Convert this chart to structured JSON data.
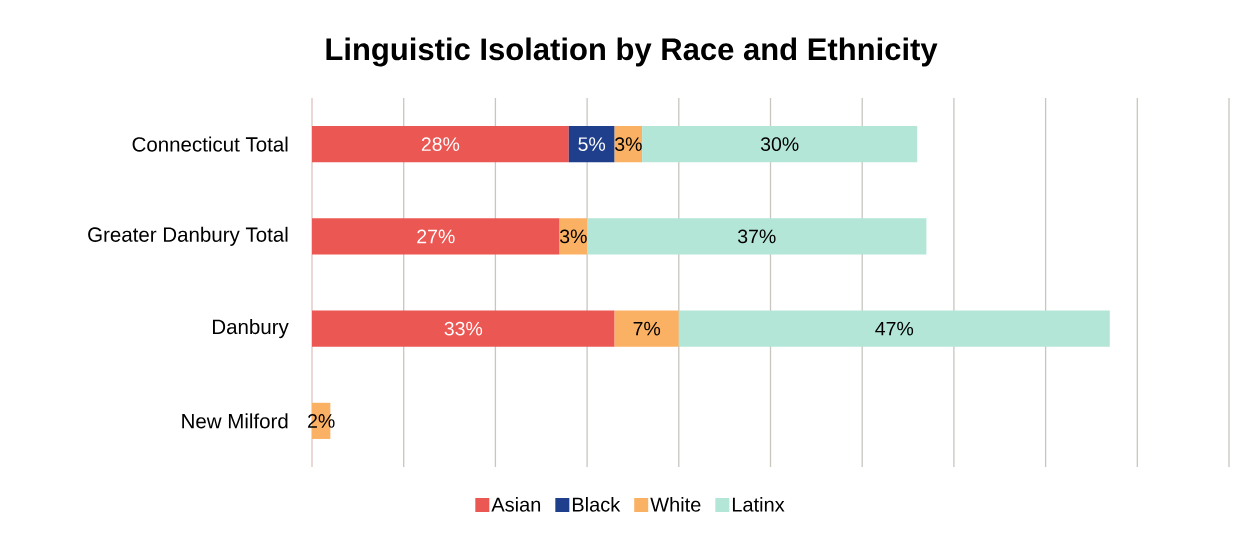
{
  "chart_data": {
    "type": "bar",
    "orientation": "horizontal",
    "stacked": true,
    "title": "Linguistic Isolation by Race and Ethnicity",
    "categories": [
      "Connecticut Total",
      "Greater Danbury Total",
      "Danbury",
      "New Milford"
    ],
    "series": [
      {
        "name": "Asian",
        "color": "#eb5753",
        "values": [
          28,
          27,
          33,
          null
        ],
        "value_labels": [
          "28%",
          "27%",
          "33%",
          null
        ]
      },
      {
        "name": "Black",
        "color": "#1f3f8c",
        "values": [
          5,
          null,
          null,
          null
        ],
        "value_labels": [
          "5%",
          null,
          null,
          null
        ]
      },
      {
        "name": "White",
        "color": "#fbb163",
        "values": [
          3,
          3,
          7,
          2
        ],
        "value_labels": [
          "3%",
          "3%",
          "7%",
          "2%"
        ]
      },
      {
        "name": "Latinx",
        "color": "#b3e6d7",
        "values": [
          30,
          37,
          47,
          null
        ],
        "value_labels": [
          "30%",
          "37%",
          "47%",
          null
        ]
      }
    ],
    "xlim": [
      0,
      100
    ],
    "xticks": [
      {
        "value": 0,
        "label": null
      },
      {
        "value": 10,
        "label": null
      },
      {
        "value": 20,
        "label": null
      },
      {
        "value": 30,
        "label": null
      },
      {
        "value": 40,
        "label": null
      },
      {
        "value": 50,
        "label": null
      },
      {
        "value": 60,
        "label": null
      },
      {
        "value": 70,
        "label": null
      },
      {
        "value": 80,
        "label": null
      },
      {
        "value": 90,
        "label": null
      },
      {
        "value": 100,
        "label": null
      }
    ],
    "grid": "x",
    "legend": "bottom",
    "tick_labels": "y"
  }
}
